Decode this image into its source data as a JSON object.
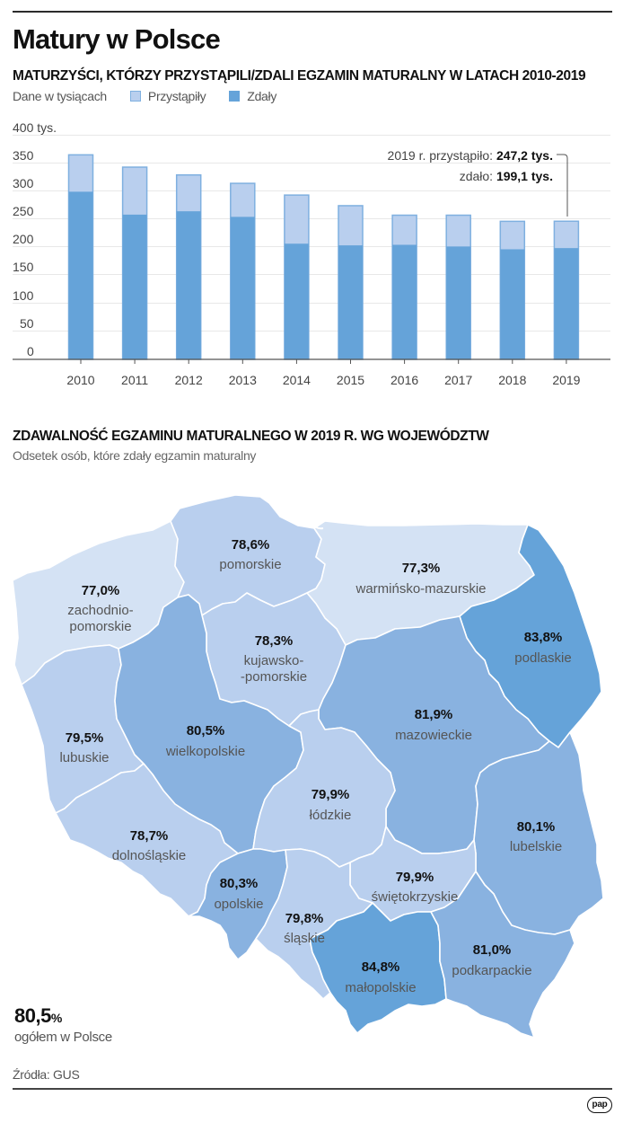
{
  "header": {
    "title": "Matury w Polsce",
    "subtitle": "MATURZYŚCI, KTÓRZY PRZYSTĄPILI/ZDALI EGZAMIN MATURALNY W LATACH 2010-2019"
  },
  "legend": {
    "unit": "Dane w tysiącach",
    "items": [
      {
        "label": "Przystąpiły",
        "color": "#b9cfee"
      },
      {
        "label": "Zdały",
        "color": "#65a3d9"
      }
    ]
  },
  "annotation": {
    "line1_prefix": "2019 r. przystąpiło: ",
    "line1_value": "247,2 tys.",
    "line2_prefix": "zdało: ",
    "line2_value": "199,1 tys."
  },
  "chart_data": [
    {
      "type": "bar",
      "title": "MATURZYŚCI, KTÓRZY PRZYSTĄPILI/ZDALI EGZAMIN MATURALNY W LATACH 2010-2019",
      "subtitle": "Dane w tysiącach",
      "categories": [
        "2010",
        "2011",
        "2012",
        "2013",
        "2014",
        "2015",
        "2016",
        "2017",
        "2018",
        "2019"
      ],
      "series": [
        {
          "name": "Przystąpiły",
          "color": "#b9cfee",
          "values": [
            366,
            344,
            330,
            315,
            294,
            275,
            258,
            258,
            247,
            247.2
          ]
        },
        {
          "name": "Zdały",
          "color": "#65a3d9",
          "values": [
            300,
            259,
            265,
            255,
            207,
            204,
            205,
            202,
            197,
            199.1
          ]
        }
      ],
      "xlabel": "",
      "ylabel": "",
      "ylim": [
        0,
        400
      ],
      "yticks": [
        "0",
        "50",
        "100",
        "150",
        "200",
        "250",
        "300",
        "350",
        "400 tys."
      ],
      "grid": true,
      "legend_position": "top-left",
      "annotations": [
        "2019 r. przystąpiło: 247,2 tys.",
        "zdało: 199,1 tys."
      ]
    },
    {
      "type": "choropleth",
      "title": "ZDAWALNOŚĆ EGZAMINU MATURALNEGO W 2019 R. WG WOJEWÓDZTW",
      "subtitle": "Odsetek osób, które zdały egzamin maturalny",
      "regions": [
        {
          "name": "zachodniopomorskie",
          "value": 77.0,
          "label": "77,0%"
        },
        {
          "name": "pomorskie",
          "value": 78.6,
          "label": "78,6%"
        },
        {
          "name": "warmińsko-mazurskie",
          "value": 77.3,
          "label": "77,3%"
        },
        {
          "name": "podlaskie",
          "value": 83.8,
          "label": "83,8%"
        },
        {
          "name": "kujawsko-pomorskie",
          "value": 78.3,
          "label": "78,3%"
        },
        {
          "name": "lubuskie",
          "value": 79.5,
          "label": "79,5%"
        },
        {
          "name": "wielkopolskie",
          "value": 80.5,
          "label": "80,5%"
        },
        {
          "name": "mazowieckie",
          "value": 81.9,
          "label": "81,9%"
        },
        {
          "name": "łódzkie",
          "value": 79.9,
          "label": "79,9%"
        },
        {
          "name": "dolnośląskie",
          "value": 78.7,
          "label": "78,7%"
        },
        {
          "name": "lubelskie",
          "value": 80.1,
          "label": "80,1%"
        },
        {
          "name": "opolskie",
          "value": 80.3,
          "label": "80,3%"
        },
        {
          "name": "świętokrzyskie",
          "value": 79.9,
          "label": "79,9%"
        },
        {
          "name": "śląskie",
          "value": 79.8,
          "label": "79,8%"
        },
        {
          "name": "małopolskie",
          "value": 84.8,
          "label": "84,8%"
        },
        {
          "name": "podkarpackie",
          "value": 81.0,
          "label": "81,0%"
        }
      ],
      "total": {
        "value": 80.5,
        "label": "80,5%",
        "caption": "ogółem w Polsce"
      }
    }
  ],
  "section2": {
    "title": "ZDAWALNOŚĆ EGZAMINU MATURALNEGO W 2019 R. WG WOJEWÓDZTW",
    "subtitle": "Odsetek osób, które zdały egzamin maturalny"
  },
  "map": {
    "colors": {
      "very_light": "#d4e2f4",
      "light": "#b9cfee",
      "medium": "#89b2e0",
      "dark": "#65a3d9"
    },
    "regions": {
      "zachodniopomorskie": {
        "value": "77,0%",
        "name1": "zachodnio-",
        "name2": "pomorskie"
      },
      "pomorskie": {
        "value": "78,6%",
        "name": "pomorskie"
      },
      "warminsko": {
        "value": "77,3%",
        "name": "warmińsko-mazurskie"
      },
      "podlaskie": {
        "value": "83,8%",
        "name": "podlaskie"
      },
      "kujawsko": {
        "value": "78,3%",
        "name1": "kujawsko-",
        "name2": "-pomorskie"
      },
      "lubuskie": {
        "value": "79,5%",
        "name": "lubuskie"
      },
      "wielkopolskie": {
        "value": "80,5%",
        "name": "wielkopolskie"
      },
      "mazowieckie": {
        "value": "81,9%",
        "name": "mazowieckie"
      },
      "lodzkie": {
        "value": "79,9%",
        "name": "łódzkie"
      },
      "dolnoslaskie": {
        "value": "78,7%",
        "name": "dolnośląskie"
      },
      "lubelskie": {
        "value": "80,1%",
        "name": "lubelskie"
      },
      "opolskie": {
        "value": "80,3%",
        "name": "opolskie"
      },
      "swietokrzyskie": {
        "value": "79,9%",
        "name": "świętokrzyskie"
      },
      "slaskie": {
        "value": "79,8%",
        "name": "śląskie"
      },
      "malopolskie": {
        "value": "84,8%",
        "name": "małopolskie"
      },
      "podkarpackie": {
        "value": "81,0%",
        "name": "podkarpackie"
      }
    }
  },
  "total": {
    "value": "80,5",
    "unit": "%",
    "caption": "ogółem w Polsce"
  },
  "footer": {
    "source": "Źródła: GUS",
    "logo": "pap"
  }
}
